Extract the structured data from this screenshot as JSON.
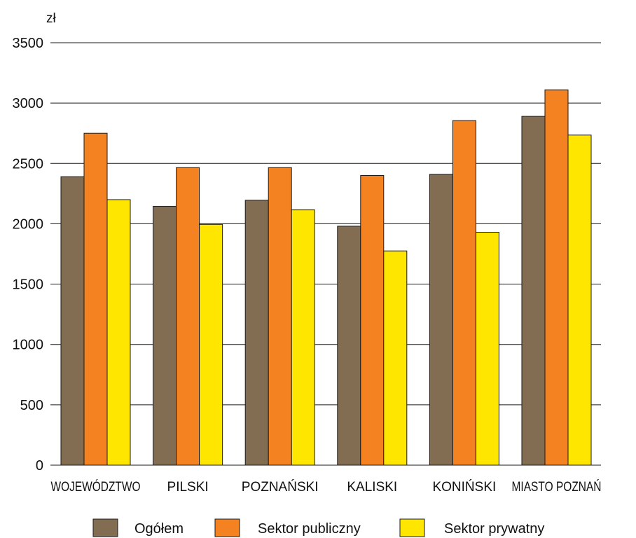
{
  "chart_data": {
    "type": "bar",
    "unit_label": "zł",
    "categories": [
      "WOJEWÓDZTWO",
      "PILSKI",
      "POZNAŃSKI",
      "KALISKI",
      "KONIŃSKI",
      "MIASTO POZNAŃ"
    ],
    "series": [
      {
        "name": "Ogółem",
        "color": "#826c52",
        "values": [
          2390,
          2145,
          2195,
          1980,
          2410,
          2890
        ]
      },
      {
        "name": "Sektor publiczny",
        "color": "#f58220",
        "values": [
          2750,
          2465,
          2465,
          2400,
          2855,
          3110
        ]
      },
      {
        "name": "Sektor prywatny",
        "color": "#ffe600",
        "values": [
          2200,
          1995,
          2115,
          1775,
          1930,
          2735
        ]
      }
    ],
    "y_ticks": [
      "0",
      "500",
      "1000",
      "1500",
      "2000",
      "2500",
      "3000",
      "3500"
    ],
    "ylim": [
      0,
      3500
    ],
    "grid": true,
    "legend_position": "bottom"
  }
}
